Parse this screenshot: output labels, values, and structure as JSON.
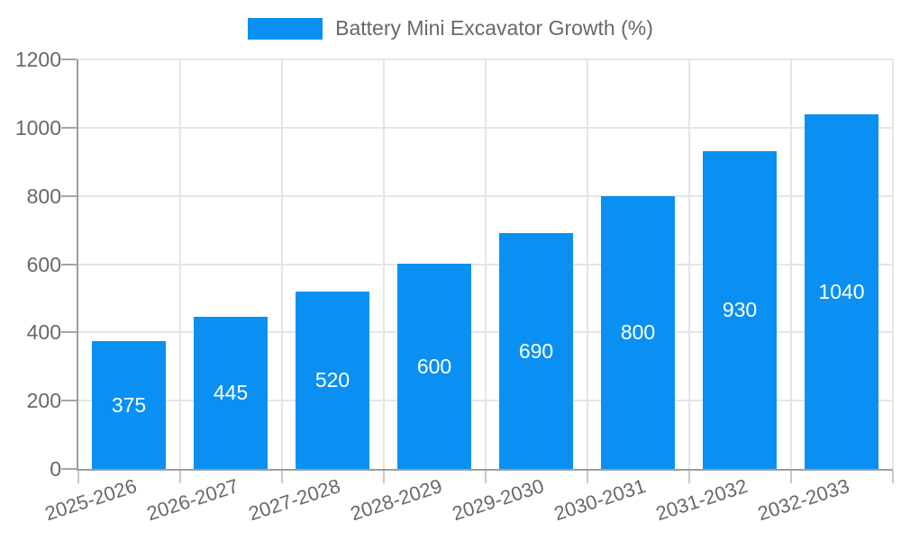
{
  "chart_data": {
    "type": "bar",
    "title": "Battery Mini Excavator Growth (%)",
    "categories": [
      "2025-2026",
      "2026-2027",
      "2027-2028",
      "2028-2029",
      "2029-2030",
      "2030-2031",
      "2031-2032",
      "2032-2033"
    ],
    "values": [
      375,
      445,
      520,
      600,
      690,
      800,
      930,
      1040
    ],
    "value_labels": [
      "375",
      "445",
      "520",
      "600",
      "690",
      "800",
      "930",
      "1040"
    ],
    "xlabel": "",
    "ylabel": "",
    "ylim": [
      0,
      1200
    ],
    "yticks": [
      0,
      200,
      400,
      600,
      800,
      1000,
      1200
    ],
    "grid": true,
    "legend_position": "top",
    "colors": {
      "bar": "#0a90f2",
      "value_label": "#ffffff",
      "axis_text": "#686868"
    }
  }
}
